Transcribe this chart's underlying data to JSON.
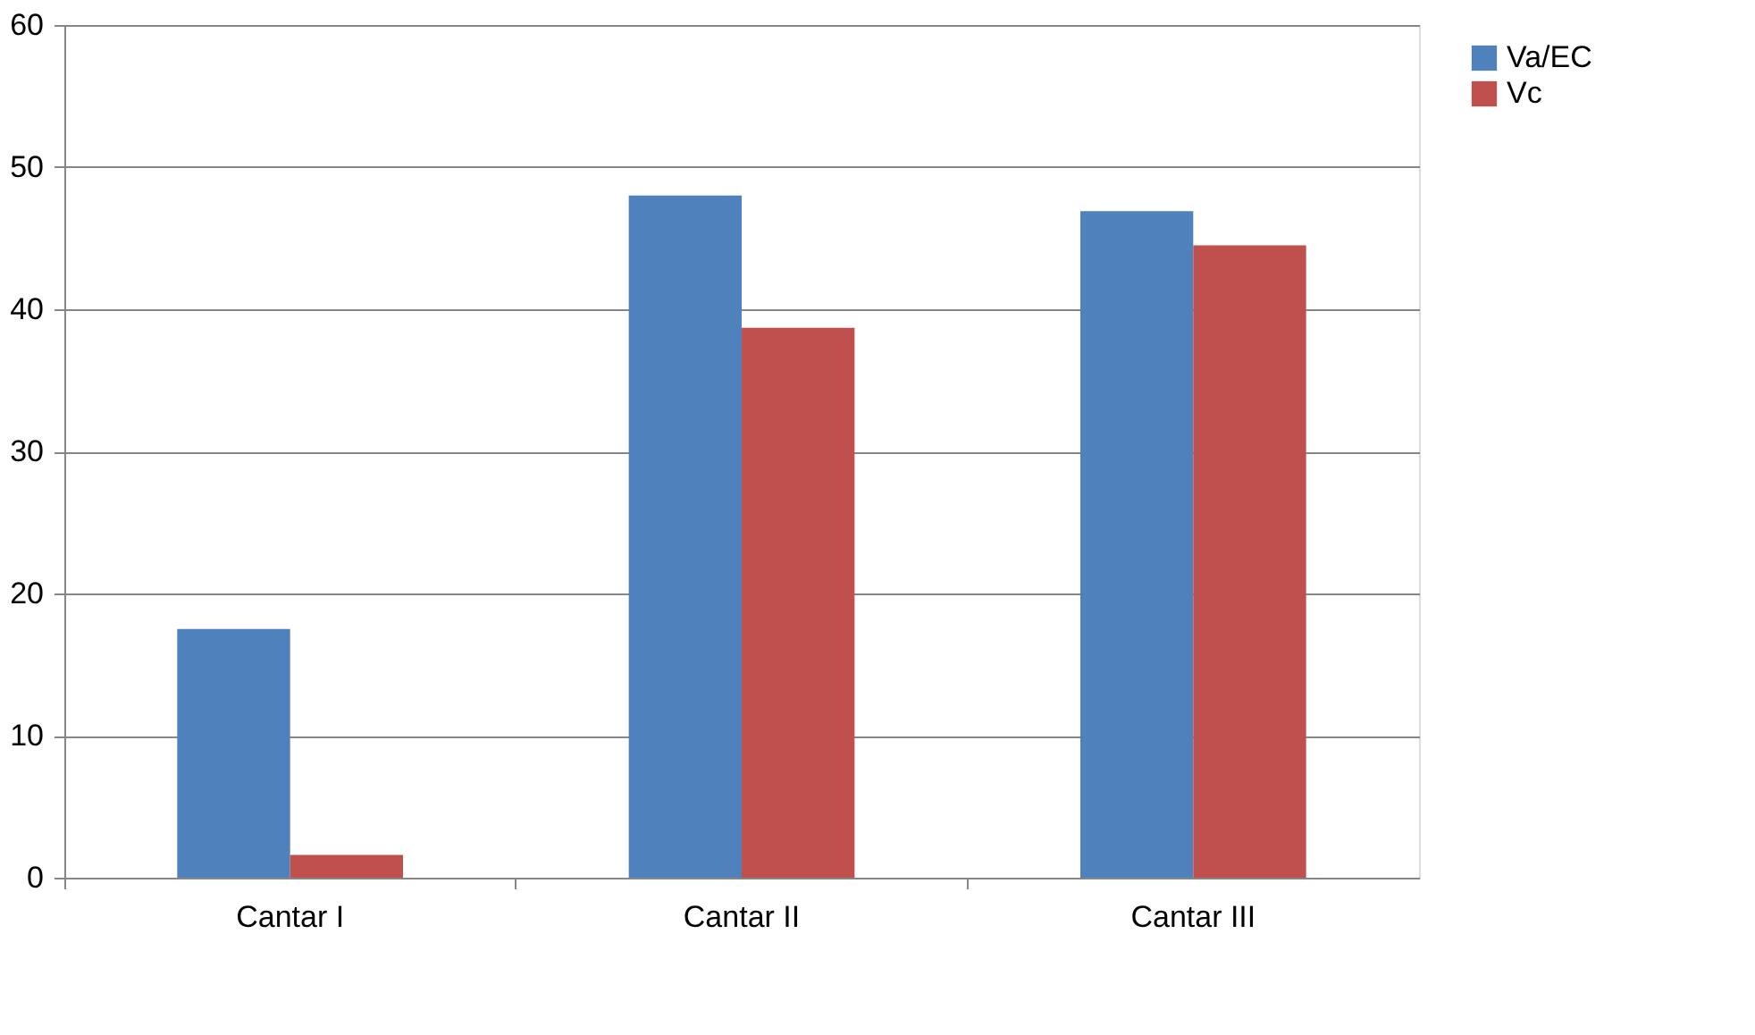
{
  "chart_data": {
    "type": "bar",
    "categories": [
      "Cantar I",
      "Cantar II",
      "Cantar III"
    ],
    "series": [
      {
        "name": "Va/EC",
        "color": "#4f81bd",
        "values": [
          17.5,
          48.0,
          46.9
        ]
      },
      {
        "name": "Vc",
        "color": "#c0504d",
        "values": [
          1.6,
          38.7,
          44.5
        ]
      }
    ],
    "ylim": [
      0,
      60
    ],
    "yticks": [
      0,
      10,
      20,
      30,
      40,
      50,
      60
    ],
    "grid": "y",
    "legend": "right"
  }
}
